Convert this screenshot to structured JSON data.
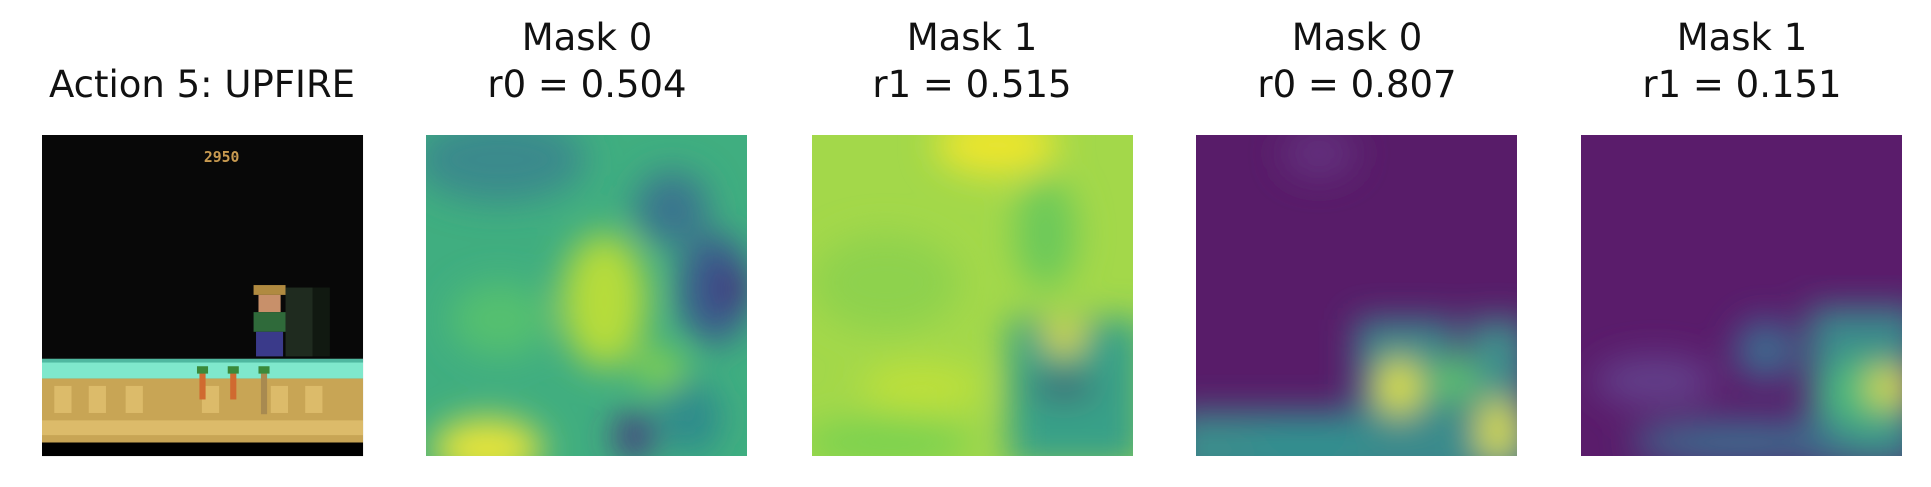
{
  "panels": [
    {
      "title": [
        "Action 5: UPFIRE"
      ],
      "score": "2950"
    },
    {
      "title": [
        "Mask 0",
        "r0 = 0.504"
      ]
    },
    {
      "title": [
        "Mask 1",
        "r1 = 0.515"
      ]
    },
    {
      "title": [
        "Mask 0",
        "r0 = 0.807"
      ]
    },
    {
      "title": [
        "Mask 1",
        "r1 = 0.151"
      ]
    }
  ]
}
